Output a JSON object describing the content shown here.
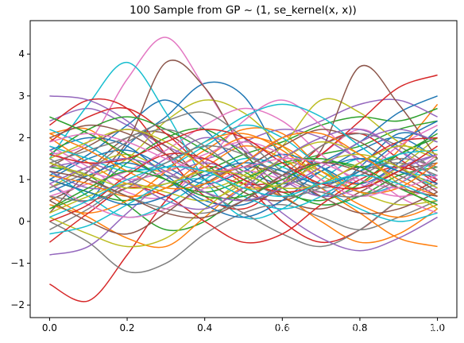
{
  "chart_data": {
    "type": "line",
    "title": "100 Sample from GP ~ (1, se_kernel(x, x))",
    "xlabel": "",
    "ylabel": "",
    "xlim": [
      -0.05,
      1.05
    ],
    "ylim": [
      -2.3,
      4.8
    ],
    "x_ticks": [
      0.0,
      0.2,
      0.4,
      0.6,
      0.8,
      1.0
    ],
    "x_tick_labels": [
      "0.0",
      "0.2",
      "0.4",
      "0.6",
      "0.8",
      "1.0"
    ],
    "y_ticks": [
      -2,
      -1,
      0,
      1,
      2,
      3,
      4
    ],
    "y_tick_labels": [
      "−2",
      "−1",
      "0",
      "1",
      "2",
      "3",
      "4"
    ],
    "grid": false,
    "legend": "none",
    "x": [
      0.0,
      0.1,
      0.2,
      0.3,
      0.4,
      0.5,
      0.6,
      0.7,
      0.8,
      0.9,
      1.0
    ],
    "palette": [
      "#1f77b4",
      "#ff7f0e",
      "#2ca02c",
      "#d62728",
      "#9467bd",
      "#8c564b",
      "#e377c2",
      "#7f7f7f",
      "#bcbd22",
      "#17becf"
    ],
    "series": [
      {
        "values": [
          0.9,
          0.5,
          1.8,
          2.5,
          3.3,
          3.0,
          1.5,
          0.6,
          1.3,
          2.1,
          1.9
        ]
      },
      {
        "values": [
          2.1,
          2.2,
          1.5,
          1.2,
          1.7,
          2.2,
          2.1,
          1.3,
          0.9,
          1.7,
          2.8
        ]
      },
      {
        "values": [
          1.3,
          1.1,
          0.4,
          -0.2,
          0.0,
          0.7,
          1.3,
          1.6,
          1.8,
          2.2,
          2.4
        ]
      },
      {
        "values": [
          -1.5,
          -1.9,
          -0.8,
          0.5,
          1.3,
          0.9,
          0.0,
          -0.5,
          -0.2,
          0.5,
          1.0
        ]
      },
      {
        "values": [
          2.4,
          2.7,
          2.3,
          1.8,
          1.5,
          1.9,
          2.2,
          2.0,
          1.5,
          1.3,
          1.6
        ]
      },
      {
        "values": [
          0.2,
          1.2,
          2.0,
          2.1,
          1.4,
          0.7,
          0.5,
          0.9,
          1.3,
          1.1,
          0.6
        ]
      },
      {
        "values": [
          1.6,
          1.9,
          3.4,
          4.4,
          3.2,
          1.8,
          1.1,
          1.6,
          2.2,
          1.7,
          1.2
        ]
      },
      {
        "values": [
          0.0,
          -0.5,
          -1.2,
          -1.0,
          -0.3,
          0.2,
          0.4,
          0.1,
          -0.2,
          0.1,
          0.5
        ]
      },
      {
        "values": [
          1.4,
          1.1,
          1.5,
          2.4,
          2.9,
          2.6,
          1.8,
          1.1,
          0.8,
          1.3,
          2.0
        ]
      },
      {
        "values": [
          1.5,
          2.8,
          3.8,
          2.6,
          1.0,
          0.1,
          0.3,
          1.0,
          1.5,
          1.2,
          0.8
        ]
      },
      {
        "values": [
          1.1,
          1.6,
          2.3,
          2.9,
          2.2,
          1.3,
          0.9,
          1.2,
          1.7,
          2.0,
          1.5
        ]
      },
      {
        "values": [
          0.6,
          0.1,
          -0.4,
          -0.6,
          0.1,
          0.8,
          0.6,
          0.0,
          -0.5,
          -0.3,
          0.3
        ]
      },
      {
        "values": [
          1.0,
          0.7,
          0.5,
          0.8,
          1.2,
          1.6,
          1.9,
          2.3,
          2.5,
          2.4,
          2.7
        ]
      },
      {
        "values": [
          2.3,
          2.9,
          2.7,
          1.6,
          0.6,
          0.3,
          0.9,
          1.8,
          2.1,
          1.5,
          0.9
        ]
      },
      {
        "values": [
          3.0,
          2.9,
          2.4,
          1.6,
          1.1,
          1.4,
          2.0,
          2.4,
          2.8,
          2.9,
          2.5
        ]
      },
      {
        "values": [
          0.5,
          1.0,
          1.9,
          3.8,
          3.2,
          1.7,
          0.6,
          0.3,
          0.7,
          1.2,
          1.4
        ]
      },
      {
        "values": [
          1.8,
          1.3,
          0.7,
          0.6,
          1.4,
          2.4,
          2.9,
          2.3,
          1.4,
          0.6,
          0.2
        ]
      },
      {
        "values": [
          -0.2,
          0.3,
          0.9,
          1.1,
          0.7,
          0.2,
          -0.3,
          -0.6,
          -0.2,
          0.5,
          0.9
        ]
      },
      {
        "values": [
          0.8,
          1.3,
          1.6,
          1.2,
          0.8,
          1.1,
          1.8,
          2.9,
          2.6,
          1.9,
          1.5
        ]
      },
      {
        "values": [
          1.2,
          0.6,
          0.1,
          0.4,
          1.0,
          1.5,
          1.3,
          0.8,
          0.3,
          0.0,
          0.2
        ]
      },
      {
        "values": [
          1.7,
          2.0,
          1.8,
          1.1,
          0.5,
          0.4,
          0.9,
          1.4,
          1.9,
          2.6,
          3.0
        ]
      },
      {
        "values": [
          2.0,
          1.4,
          0.9,
          0.9,
          1.3,
          1.8,
          1.5,
          0.8,
          0.2,
          -0.4,
          -0.6
        ]
      },
      {
        "values": [
          0.3,
          0.7,
          1.4,
          2.0,
          2.2,
          1.6,
          0.8,
          0.4,
          0.6,
          1.1,
          1.3
        ]
      },
      {
        "values": [
          1.9,
          2.5,
          2.7,
          2.1,
          1.3,
          0.9,
          1.0,
          1.6,
          2.4,
          3.2,
          3.5
        ]
      },
      {
        "values": [
          -0.8,
          -0.6,
          0.2,
          1.0,
          1.4,
          1.0,
          0.2,
          -0.4,
          -0.7,
          -0.4,
          0.1
        ]
      },
      {
        "values": [
          1.3,
          1.8,
          2.2,
          1.8,
          1.0,
          0.5,
          0.8,
          1.7,
          3.7,
          2.8,
          1.5
        ]
      },
      {
        "values": [
          0.6,
          0.9,
          1.2,
          1.7,
          2.3,
          2.7,
          2.4,
          1.6,
          0.9,
          0.6,
          0.8
        ]
      },
      {
        "values": [
          1.5,
          1.0,
          0.6,
          0.3,
          0.2,
          0.5,
          1.1,
          1.8,
          2.1,
          1.8,
          1.2
        ]
      },
      {
        "values": [
          0.1,
          -0.3,
          -0.6,
          -0.4,
          0.3,
          1.0,
          1.4,
          1.2,
          0.7,
          0.4,
          0.5
        ]
      },
      {
        "values": [
          2.2,
          1.8,
          1.3,
          1.3,
          1.8,
          2.3,
          2.0,
          1.3,
          0.7,
          0.9,
          1.5
        ]
      },
      {
        "values": [
          1.0,
          1.5,
          1.7,
          1.3,
          0.9,
          1.2,
          1.6,
          1.3,
          0.9,
          1.4,
          2.2
        ]
      },
      {
        "values": [
          0.4,
          0.2,
          0.5,
          1.2,
          1.9,
          2.1,
          1.7,
          1.0,
          0.4,
          0.1,
          0.4
        ]
      },
      {
        "values": [
          1.6,
          2.2,
          2.5,
          2.2,
          1.7,
          1.2,
          0.7,
          0.5,
          0.9,
          1.6,
          2.0
        ]
      },
      {
        "values": [
          -0.5,
          0.2,
          0.8,
          0.6,
          0.0,
          -0.5,
          -0.3,
          0.4,
          1.0,
          1.3,
          1.0
        ]
      },
      {
        "values": [
          1.2,
          0.8,
          0.9,
          1.5,
          2.0,
          1.7,
          1.0,
          0.6,
          0.8,
          1.3,
          1.6
        ]
      },
      {
        "values": [
          2.0,
          2.3,
          2.1,
          1.6,
          1.2,
          1.3,
          1.8,
          2.2,
          1.9,
          1.3,
          0.7
        ]
      },
      {
        "values": [
          0.9,
          0.4,
          0.1,
          0.3,
          0.8,
          1.2,
          1.0,
          0.7,
          1.1,
          1.8,
          2.3
        ]
      },
      {
        "values": [
          1.4,
          1.7,
          2.0,
          2.4,
          2.6,
          2.0,
          1.2,
          0.8,
          1.1,
          1.5,
          1.3
        ]
      },
      {
        "values": [
          0.2,
          0.6,
          0.9,
          0.7,
          0.5,
          0.9,
          1.5,
          1.9,
          1.6,
          0.9,
          0.3
        ]
      },
      {
        "values": [
          1.8,
          1.5,
          1.2,
          1.4,
          1.9,
          2.5,
          2.8,
          2.5,
          1.8,
          1.2,
          1.1
        ]
      },
      {
        "values": [
          0.7,
          1.1,
          1.4,
          1.0,
          0.4,
          0.1,
          0.5,
          1.2,
          1.5,
          1.2,
          0.9
        ]
      },
      {
        "values": [
          1.1,
          0.9,
          0.6,
          0.8,
          1.5,
          2.0,
          1.8,
          1.2,
          0.7,
          0.8,
          1.4
        ]
      },
      {
        "values": [
          2.5,
          2.1,
          1.6,
          1.0,
          0.7,
          1.0,
          1.4,
          1.5,
          1.3,
          1.6,
          2.1
        ]
      },
      {
        "values": [
          0.0,
          0.4,
          1.1,
          1.6,
          1.5,
          1.0,
          0.7,
          0.9,
          1.4,
          1.9,
          2.0
        ]
      },
      {
        "values": [
          1.3,
          1.4,
          1.0,
          0.5,
          0.3,
          0.8,
          1.5,
          2.0,
          2.2,
          1.7,
          1.0
        ]
      },
      {
        "values": [
          0.5,
          0.0,
          -0.3,
          0.2,
          0.9,
          1.3,
          1.1,
          0.6,
          0.2,
          0.3,
          0.7
        ]
      },
      {
        "values": [
          1.7,
          1.2,
          1.0,
          1.2,
          1.6,
          1.9,
          1.6,
          1.0,
          0.6,
          0.9,
          1.6
        ]
      },
      {
        "values": [
          0.8,
          1.2,
          1.9,
          2.2,
          1.8,
          1.1,
          0.6,
          0.8,
          1.2,
          1.4,
          1.1
        ]
      },
      {
        "values": [
          1.5,
          1.9,
          2.2,
          1.9,
          1.3,
          0.8,
          0.9,
          1.4,
          1.6,
          1.3,
          0.8
        ]
      },
      {
        "values": [
          -0.3,
          -0.1,
          0.4,
          0.9,
          1.0,
          0.6,
          0.3,
          0.6,
          1.2,
          1.6,
          1.7
        ]
      },
      {
        "values": [
          1.0,
          0.7,
          0.4,
          0.6,
          1.1,
          1.4,
          1.2,
          0.9,
          1.2,
          1.9,
          2.4
        ]
      },
      {
        "values": [
          2.1,
          1.7,
          1.2,
          0.8,
          0.9,
          1.4,
          2.0,
          2.1,
          1.6,
          1.0,
          0.6
        ]
      },
      {
        "values": [
          0.3,
          0.8,
          1.2,
          1.0,
          0.6,
          0.6,
          1.0,
          1.4,
          1.3,
          0.8,
          0.4
        ]
      },
      {
        "values": [
          1.6,
          1.4,
          1.5,
          1.9,
          2.2,
          2.0,
          1.4,
          0.9,
          0.8,
          1.2,
          1.8
        ]
      },
      {
        "values": [
          0.9,
          1.3,
          1.5,
          1.2,
          0.7,
          0.5,
          0.8,
          1.3,
          1.9,
          2.2,
          1.9
        ]
      },
      {
        "values": [
          1.2,
          1.0,
          0.6,
          0.2,
          0.1,
          0.5,
          1.1,
          1.4,
          1.2,
          0.8,
          0.6
        ]
      },
      {
        "values": [
          1.9,
          2.1,
          1.9,
          1.5,
          1.2,
          1.3,
          1.5,
          1.4,
          1.0,
          0.8,
          1.1
        ]
      },
      {
        "values": [
          0.6,
          0.5,
          0.8,
          1.4,
          1.8,
          1.6,
          1.1,
          0.7,
          0.6,
          1.0,
          1.5
        ]
      },
      {
        "values": [
          1.4,
          1.1,
          0.8,
          0.9,
          1.2,
          1.1,
          0.8,
          0.9,
          1.4,
          1.8,
          1.6
        ]
      },
      {
        "values": [
          0.1,
          0.5,
          1.0,
          1.3,
          1.2,
          0.8,
          0.6,
          0.9,
          1.1,
          0.9,
          0.5
        ]
      }
    ]
  },
  "watermark": "https://blog.csdn.net/qq_37308146"
}
